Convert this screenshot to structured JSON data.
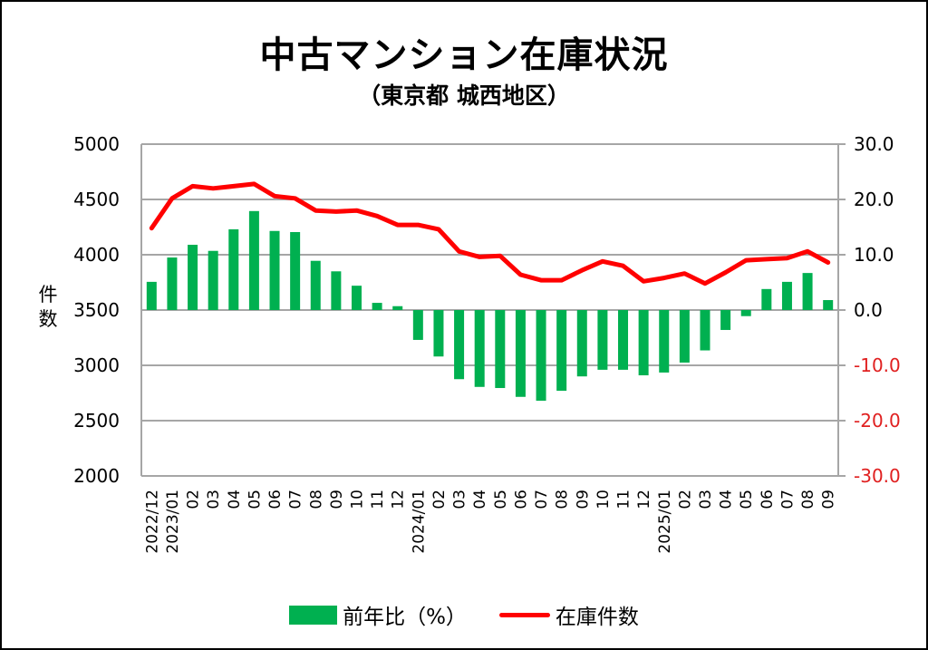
{
  "chart_data": {
    "type": "bar+line",
    "title": "中古マンション在庫状況",
    "subtitle": "（東京都 城西地区）",
    "ylabel_left": "件数",
    "ylabel_right": "",
    "xlabel": "",
    "categories": [
      "2022/12",
      "2023/01",
      "02",
      "03",
      "04",
      "05",
      "06",
      "07",
      "08",
      "09",
      "10",
      "11",
      "12",
      "2024/01",
      "02",
      "03",
      "04",
      "05",
      "06",
      "07",
      "08",
      "09",
      "10",
      "11",
      "12",
      "2025/01",
      "02",
      "03",
      "04",
      "05",
      "06",
      "07",
      "08",
      "09"
    ],
    "left_axis": {
      "min": 2000,
      "max": 5000,
      "ticks": [
        "5000",
        "4500",
        "4000",
        "3500",
        "3000",
        "2500",
        "2000"
      ],
      "tick_values": [
        5000,
        4500,
        4000,
        3500,
        3000,
        2500,
        2000
      ]
    },
    "right_axis": {
      "min": -30,
      "max": 30,
      "ticks": [
        "30.0",
        "20.0",
        "10.0",
        "0.0",
        "-10.0",
        "-20.0",
        "-30.0"
      ],
      "tick_values": [
        30,
        20,
        10,
        0,
        -10,
        -20,
        -30
      ],
      "negative_color": "#e02020"
    },
    "grid": true,
    "legend_position": "bottom",
    "series": [
      {
        "name": "前年比（%）",
        "type": "bar",
        "axis": "right",
        "color": "#00b050",
        "values": [
          5.1,
          9.5,
          11.8,
          10.7,
          14.6,
          17.9,
          14.3,
          14.1,
          8.9,
          7.0,
          4.4,
          1.3,
          0.7,
          -5.4,
          -8.4,
          -12.5,
          -13.9,
          -14.1,
          -15.7,
          -16.4,
          -14.6,
          -12.0,
          -10.8,
          -10.8,
          -11.8,
          -11.3,
          -9.5,
          -7.3,
          -3.6,
          -1.1,
          3.8,
          5.1,
          6.7,
          1.8
        ]
      },
      {
        "name": "在庫件数",
        "type": "line",
        "axis": "left",
        "color": "#ff0000",
        "values": [
          4240,
          4510,
          4620,
          4600,
          4620,
          4640,
          4530,
          4510,
          4400,
          4390,
          4400,
          4350,
          4270,
          4270,
          4230,
          4030,
          3980,
          3990,
          3820,
          3770,
          3770,
          3860,
          3940,
          3900,
          3760,
          3790,
          3830,
          3740,
          3840,
          3950,
          3960,
          3970,
          4030,
          3930
        ]
      }
    ]
  }
}
